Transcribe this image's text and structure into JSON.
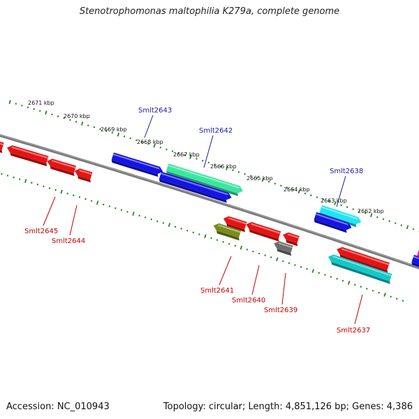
{
  "title": "Stenotrophomonas maltophilia K279a, complete genome",
  "footer": {
    "accession": "Accession: NC_010943",
    "summary": "Topology: circular; Length: 4,851,126 bp; Genes: 4,386"
  },
  "colors": {
    "backbone": "#7a7a7a",
    "tick": "#1e8a1e",
    "forward_label": "#1a1aa0",
    "reverse_label": "#c40000",
    "forward_gene": "#1414e6",
    "reverse_gene": "#e61414",
    "teal_gene": "#3ce6a0",
    "cyan_gene": "#1ee6f0",
    "dark_cyan_gene": "#14c8c8",
    "olive_gene": "#7a8c1e",
    "gray_gene": "#6e6e6e",
    "magenta_gene": "#f014c8"
  },
  "kbp_labels": [
    "2671 kbp",
    "2670 kbp",
    "2669 kbp",
    "2668 kbp",
    "2667 kbp",
    "2666 kbp",
    "2665 kbp",
    "2664 kbp",
    "2663 kbp",
    "2662 kbp"
  ],
  "gene_labels": [
    {
      "name": "Smlt2643",
      "strand": "forward"
    },
    {
      "name": "Smlt2642",
      "strand": "forward"
    },
    {
      "name": "Smlt2638",
      "strand": "forward"
    },
    {
      "name": "Smlt2645",
      "strand": "reverse"
    },
    {
      "name": "Smlt2644",
      "strand": "reverse"
    },
    {
      "name": "Smlt2641",
      "strand": "reverse"
    },
    {
      "name": "Smlt2640",
      "strand": "reverse"
    },
    {
      "name": "Smlt2639",
      "strand": "reverse"
    },
    {
      "name": "Smlt2637",
      "strand": "reverse"
    }
  ]
}
